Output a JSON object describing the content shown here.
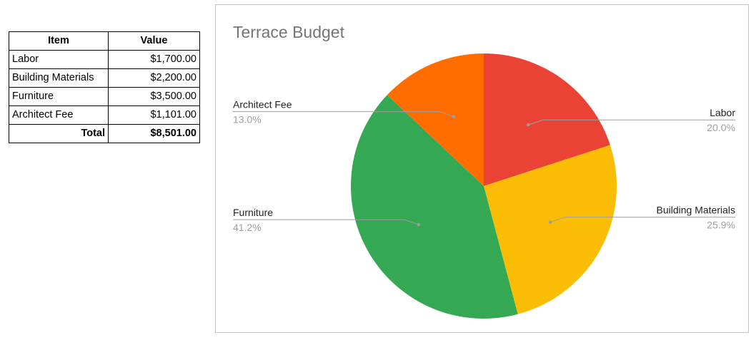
{
  "table": {
    "headers": [
      "Item",
      "Value"
    ],
    "rows": [
      {
        "item": "Labor",
        "value": "$1,700.00"
      },
      {
        "item": "Building Materials",
        "value": "$2,200.00"
      },
      {
        "item": "Furniture",
        "value": "$3,500.00"
      },
      {
        "item": "Architect Fee",
        "value": "$1,101.00"
      }
    ],
    "total": {
      "label": "Total",
      "value": "$8,501.00"
    }
  },
  "chart_data": {
    "type": "pie",
    "title": "Terrace Budget",
    "categories": [
      "Labor",
      "Building Materials",
      "Furniture",
      "Architect Fee"
    ],
    "values": [
      1700,
      2200,
      3500,
      1101
    ],
    "percent_labels": [
      "20.0%",
      "25.9%",
      "41.2%",
      "13.0%"
    ],
    "colors": [
      "#ea4335",
      "#fbbc04",
      "#34a853",
      "#ff6d01"
    ],
    "start_angle_deg": 0,
    "direction": "clockwise",
    "legend": "none",
    "label_placement": [
      "right",
      "right",
      "left",
      "left"
    ]
  }
}
